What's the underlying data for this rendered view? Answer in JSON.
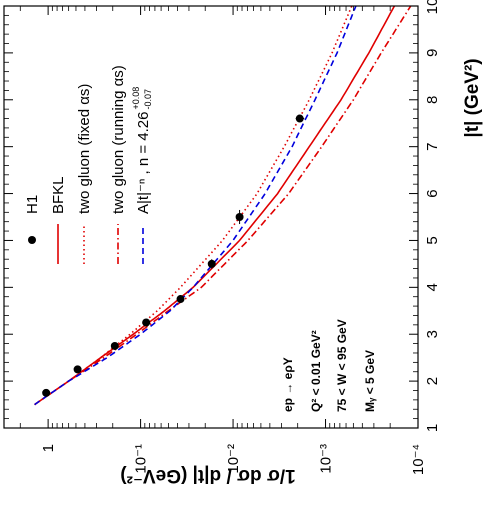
{
  "chart_data": {
    "type": "line",
    "xlabel": "|t| (GeV²)",
    "ylabel": "1/σ dσ / d|t| (GeV⁻²)",
    "xlim": [
      1,
      10
    ],
    "ylim": [
      0.0001,
      3
    ],
    "yscale": "log",
    "x_ticks": [
      "1",
      "2",
      "3",
      "4",
      "5",
      "6",
      "7",
      "8",
      "9",
      "10"
    ],
    "y_ticks": [
      "1",
      "10⁻¹",
      "10⁻²",
      "10⁻³",
      "10⁻⁴"
    ],
    "legend_position": "top-left",
    "annotations": [
      "ep → eρY",
      "Q² < 0.01 GeV²",
      "75 < W < 95 GeV",
      "Mᵧ < 5 GeV"
    ],
    "points": {
      "name": "H1",
      "x": [
        1.75,
        2.25,
        2.75,
        3.25,
        3.75,
        4.5,
        5.5,
        7.6
      ],
      "y": [
        1.05,
        0.48,
        0.19,
        0.087,
        0.037,
        0.017,
        0.0085,
        0.0019
      ],
      "x_err": [
        0,
        0,
        0,
        0,
        0.08,
        0.1,
        0.15,
        0
      ],
      "y_err": [
        0,
        0,
        0,
        0,
        0,
        0,
        0,
        0.0002
      ]
    },
    "series": [
      {
        "name": "BFKL",
        "style": "solid",
        "color": "#e00000",
        "x": [
          1.5,
          2,
          2.5,
          3,
          3.5,
          4,
          5,
          6,
          7,
          8,
          9,
          10
        ],
        "y": [
          1.4,
          0.6,
          0.27,
          0.12,
          0.055,
          0.027,
          0.0085,
          0.0033,
          0.0015,
          0.00068,
          0.00034,
          0.00018
        ]
      },
      {
        "name": "two gluon (fixed αs)",
        "style": "dotted",
        "color": "#e00000",
        "x": [
          1.5,
          2,
          2.5,
          3,
          3.5,
          4,
          5,
          6,
          7,
          8,
          9,
          10
        ],
        "y": [
          1.4,
          0.6,
          0.27,
          0.13,
          0.066,
          0.037,
          0.013,
          0.0055,
          0.0028,
          0.0015,
          0.00085,
          0.00052
        ]
      },
      {
        "name": "two gluon (running αs)",
        "style": "dash-dot",
        "color": "#e00000",
        "x": [
          1.5,
          2,
          2.5,
          3,
          3.5,
          4,
          5,
          6,
          7,
          8,
          9,
          10
        ],
        "y": [
          1.4,
          0.6,
          0.25,
          0.11,
          0.05,
          0.022,
          0.0069,
          0.0025,
          0.0011,
          0.0005,
          0.00025,
          0.00012
        ]
      },
      {
        "name": "A|t|⁻ⁿ , n = 4.26",
        "name_sup": "+0.08",
        "name_sub": "-0.07",
        "style": "dashed",
        "color": "#0000dd",
        "x": [
          1.5,
          2,
          2.5,
          3,
          3.5,
          4,
          5,
          6,
          7,
          8,
          9,
          10
        ],
        "y": [
          1.4,
          0.6,
          0.23,
          0.1,
          0.048,
          0.027,
          0.01,
          0.0045,
          0.0023,
          0.0013,
          0.00075,
          0.00047
        ]
      }
    ]
  }
}
